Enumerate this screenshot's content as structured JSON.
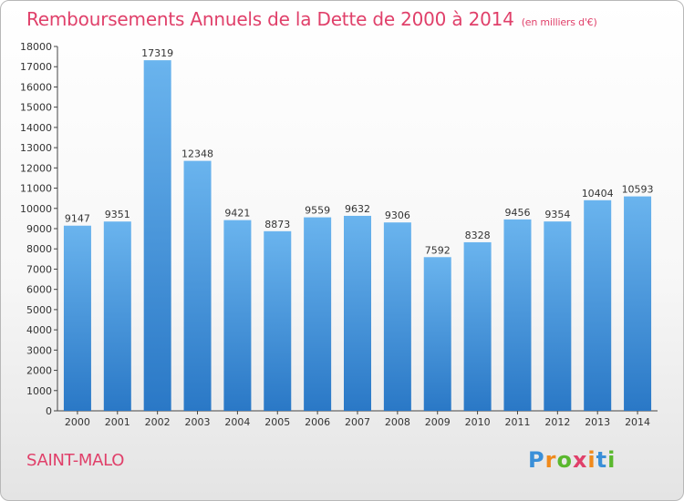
{
  "page": {
    "title": "Remboursements Annuels de la Dette de 2000 à 2014",
    "subtitle": "(en milliers d'€)",
    "city": "SAINT-MALO",
    "logo_letters": [
      "P",
      "r",
      "o",
      "x",
      "i",
      "t",
      "i"
    ],
    "logo_colors": [
      "#3a8fd8",
      "#f08a1c",
      "#5ab82e",
      "#e0406a",
      "#f08a1c",
      "#3a8fd8",
      "#5ab82e"
    ]
  },
  "colors": {
    "accent": "#e0406a",
    "bar_top": "#6ab4ee",
    "bar_bottom": "#2a78c6"
  },
  "chart_data": {
    "type": "bar",
    "categories": [
      "2000",
      "2001",
      "2002",
      "2003",
      "2004",
      "2005",
      "2006",
      "2007",
      "2008",
      "2009",
      "2010",
      "2011",
      "2012",
      "2013",
      "2014"
    ],
    "values": [
      9147,
      9351,
      17319,
      12348,
      9421,
      8873,
      9559,
      9632,
      9306,
      7592,
      8328,
      9456,
      9354,
      10404,
      10593
    ],
    "data_labels": [
      "9147",
      "9351",
      "17319",
      "12348",
      "9421",
      "8873",
      "9559",
      "9632",
      "9306",
      "7592",
      "8328",
      "9456",
      "9354",
      "10404",
      "10593"
    ],
    "y_ticks": [
      0,
      1000,
      2000,
      3000,
      4000,
      5000,
      6000,
      7000,
      8000,
      9000,
      10000,
      11000,
      12000,
      13000,
      14000,
      15000,
      16000,
      17000,
      18000
    ],
    "ylim": [
      0,
      18000
    ],
    "grid": false,
    "legend": "none"
  }
}
